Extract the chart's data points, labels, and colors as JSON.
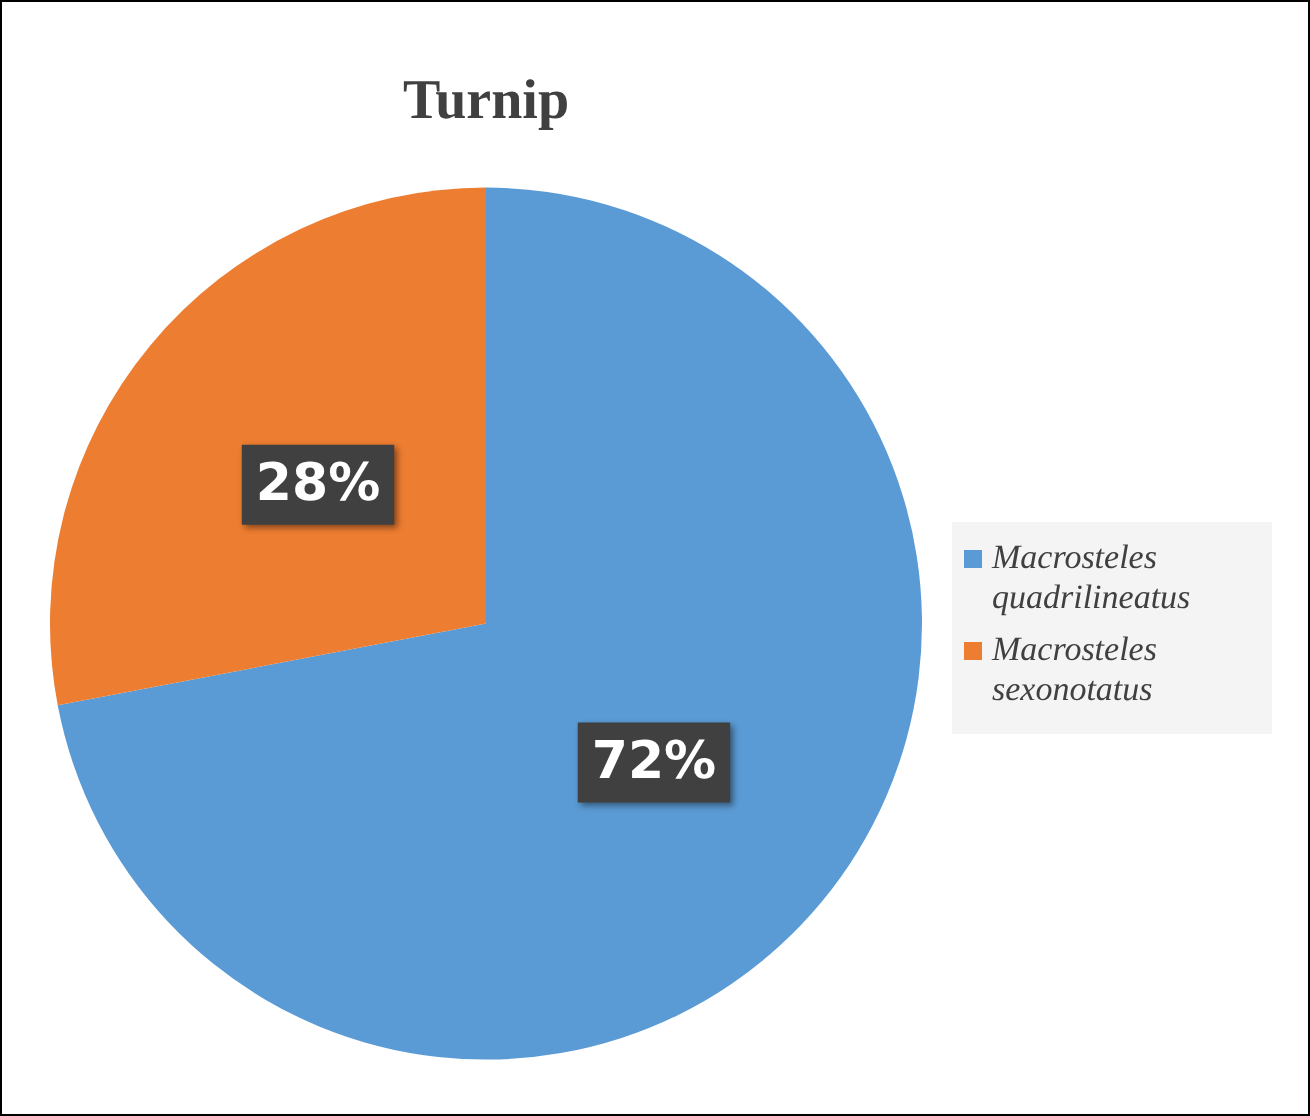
{
  "chart_data": {
    "type": "pie",
    "title": "Turnip",
    "categories": [
      "Macrosteles quadrilineatus",
      "Macrosteles sexonotatus"
    ],
    "values": [
      72,
      28
    ],
    "colors": [
      "#5b9bd5",
      "#ed7d31"
    ],
    "value_labels": [
      "72%",
      "28%"
    ],
    "legend": "right"
  }
}
